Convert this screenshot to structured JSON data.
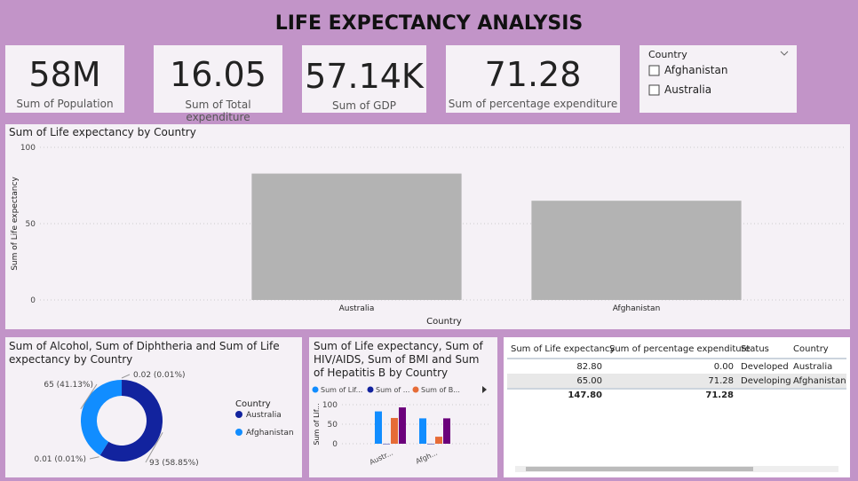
{
  "title": "LIFE EXPECTANCY ANALYSIS",
  "cards": [
    {
      "value": "58M",
      "label": "Sum of Population"
    },
    {
      "value": "16.05",
      "label": "Sum of Total expenditure"
    },
    {
      "value": "57.14K",
      "label": "Sum of GDP"
    },
    {
      "value": "71.28",
      "label": "Sum of percentage expenditure"
    }
  ],
  "slicer": {
    "title": "Country",
    "items": [
      "Afghanistan",
      "Australia"
    ]
  },
  "chart_data": [
    {
      "type": "bar",
      "title": "Sum of Life expectancy by Country",
      "x_label": "Country",
      "y_label": "Sum of Life expectancy",
      "categories": [
        "Australia",
        "Afghanistan"
      ],
      "values": [
        82.8,
        65.0
      ],
      "color": "#b3b3b3",
      "ylim": [
        0,
        100
      ],
      "yticks": [
        0,
        50,
        100
      ],
      "grid": true
    },
    {
      "type": "donut",
      "title": "Sum of Alcohol, Sum of Diphtheria and Sum of Life expectancy by Country",
      "values": [
        0.02,
        93,
        0.01,
        65
      ],
      "value_labels": [
        "0.02 (0.01%)",
        "93 (58.85%)",
        "0.01 (0.01%)",
        "65 (41.13%)"
      ],
      "colors": [
        "#12239e",
        "#12239e",
        "#118dff",
        "#118dff"
      ],
      "legend_title": "Country",
      "legend": [
        "Australia",
        "Afghanistan"
      ],
      "legend_colors": [
        "#12239e",
        "#118dff"
      ]
    },
    {
      "type": "grouped_bar",
      "title": "Sum of Life expectancy, Sum of HIV/AIDS, Sum of BMI and Sum of Hepatitis B by Country",
      "y_label": "Sum of Lif...",
      "categories": [
        "Austr...",
        "Afgh..."
      ],
      "series": [
        {
          "name": "Sum of Lif...",
          "color": "#118dff",
          "values": [
            82.8,
            65.0
          ]
        },
        {
          "name": "Sum of ...",
          "color": "#12239e",
          "values": [
            0.1,
            0.1
          ]
        },
        {
          "name": "Sum of B...",
          "color": "#e66c37",
          "values": [
            66,
            18
          ]
        },
        {
          "color": "#6b007b",
          "values": [
            93,
            65
          ]
        }
      ],
      "ylim": [
        0,
        100
      ],
      "yticks": [
        0,
        50,
        100
      ]
    }
  ],
  "table": {
    "columns": [
      "Sum of Life expectancy",
      "Sum of percentage expenditure",
      "Status",
      "Country"
    ],
    "rows": [
      [
        "82.80",
        "0.00",
        "Developed",
        "Australia"
      ],
      [
        "65.00",
        "71.28",
        "Developing",
        "Afghanistan"
      ]
    ],
    "total": [
      "147.80",
      "71.28"
    ]
  }
}
